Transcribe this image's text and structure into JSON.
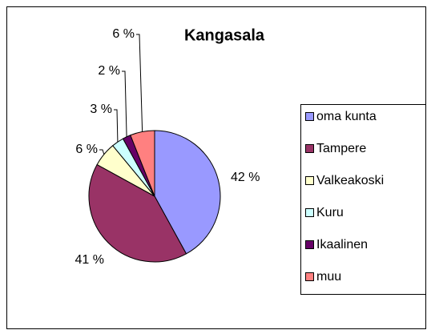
{
  "chart_data": {
    "type": "pie",
    "title": "Kangasala",
    "categories": [
      "oma kunta",
      "Tampere",
      "Valkeakoski",
      "Kuru",
      "Ikaalinen",
      "muu"
    ],
    "values": [
      42,
      41,
      6,
      3,
      2,
      6
    ],
    "value_labels": [
      "42 %",
      "41 %",
      "6 %",
      "3 %",
      "2 %",
      "6 %"
    ],
    "colors": [
      "#9999ff",
      "#993366",
      "#ffffcc",
      "#ccffff",
      "#660066",
      "#ff8080"
    ],
    "legend": "right"
  }
}
